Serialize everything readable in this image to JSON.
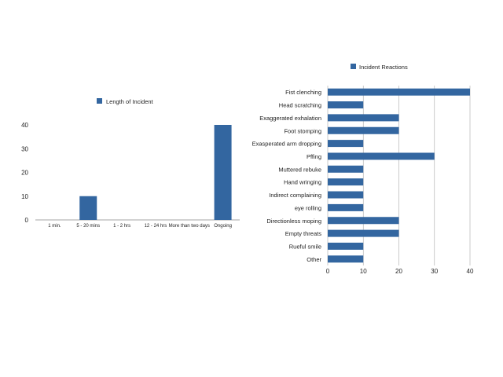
{
  "charts": {
    "length": {
      "legend_label": "Length of Incident"
    },
    "reactions": {
      "legend_label": "Incident Reactions"
    }
  },
  "chart_data": [
    {
      "type": "bar",
      "orientation": "vertical",
      "categories": [
        "1  min.",
        "5 - 20 mins",
        "1 - 2 hrs",
        "12 - 24 hrs",
        "More than two days",
        "Ongoing"
      ],
      "series": [
        {
          "name": "Length of Incident",
          "values": [
            0,
            10,
            0,
            0,
            0,
            40
          ]
        }
      ],
      "ylim": [
        0,
        40
      ],
      "yticks": [
        0,
        10,
        20,
        30,
        40
      ],
      "grid": false,
      "legend": "top-center",
      "color": "#3366a0"
    },
    {
      "type": "bar",
      "orientation": "horizontal",
      "categories": [
        "Fist clenching",
        "Head scratching",
        "Exaggerated exhalation",
        "Foot stomping",
        "Exasperated arm dropping",
        "Pffing",
        "Muttered rebuke",
        "Hand wringing",
        "Indirect complaining",
        "eye rolling",
        "Directionless moping",
        "Empty threats",
        "Rueful smile",
        "Other"
      ],
      "series": [
        {
          "name": "Incident Reactions",
          "values": [
            40,
            10,
            20,
            20,
            10,
            30,
            10,
            10,
            10,
            10,
            20,
            20,
            10,
            10
          ]
        }
      ],
      "xlim": [
        0,
        40
      ],
      "xticks": [
        0,
        10,
        20,
        30,
        40
      ],
      "grid": "vertical",
      "legend": "top-center",
      "color": "#3366a0"
    }
  ]
}
